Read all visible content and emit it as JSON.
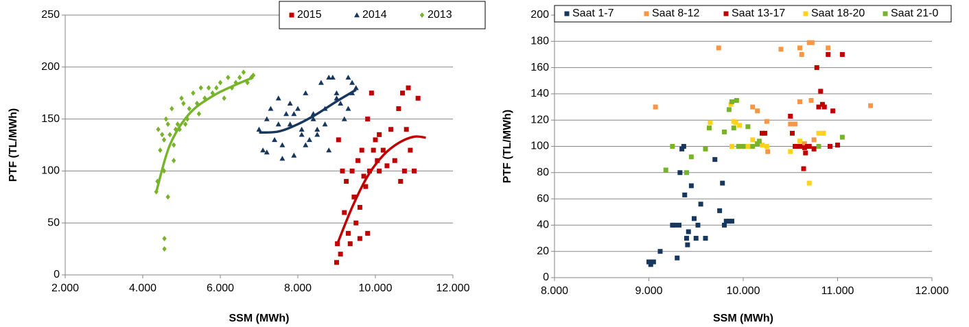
{
  "chart_data": [
    {
      "type": "scatter",
      "xlabel": "SSM (MWh)",
      "ylabel": "PTF (TL/MWh)",
      "xlim": [
        2000,
        12000
      ],
      "xticks": [
        {
          "value": 2000,
          "label": "2.000"
        },
        {
          "value": 4000,
          "label": "4.000"
        },
        {
          "value": 6000,
          "label": "6.000"
        },
        {
          "value": 8000,
          "label": "8.000"
        },
        {
          "value": 10000,
          "label": "10.000"
        },
        {
          "value": 12000,
          "label": "12.000"
        }
      ],
      "ylim": [
        0,
        250
      ],
      "yticks": [
        0,
        50,
        100,
        150,
        200,
        250
      ],
      "grid": true,
      "legend": "top-right",
      "series": [
        {
          "name": "2015",
          "color": "#c00000",
          "marker": "square",
          "x": [
            9000,
            9020,
            9050,
            9100,
            9150,
            9200,
            9250,
            9300,
            9350,
            9400,
            9450,
            9500,
            9550,
            9600,
            9650,
            9700,
            9750,
            9800,
            9850,
            9900,
            9950,
            10000,
            10050,
            10100,
            10200,
            10300,
            10400,
            10500,
            10600,
            10700,
            10800,
            10900,
            11000,
            11100,
            10750,
            10850,
            10650,
            9800,
            9600,
            10100
          ],
          "values": [
            12,
            30,
            130,
            20,
            100,
            60,
            90,
            40,
            30,
            100,
            75,
            50,
            110,
            65,
            120,
            95,
            85,
            150,
            100,
            175,
            120,
            130,
            110,
            100,
            120,
            105,
            140,
            110,
            160,
            175,
            140,
            120,
            100,
            170,
            100,
            180,
            90,
            40,
            35,
            135
          ],
          "trend": {
            "x": [
              9000,
              9400,
              9800,
              10200,
              10600,
              11000,
              11300
            ],
            "y": [
              28,
              65,
              95,
              115,
              127,
              133,
              132
            ]
          }
        },
        {
          "name": "2014",
          "color": "#17375e",
          "marker": "triangle",
          "x": [
            7000,
            7100,
            7200,
            7300,
            7400,
            7500,
            7600,
            7700,
            7800,
            7900,
            8000,
            8100,
            8200,
            8300,
            8400,
            8500,
            8600,
            8700,
            8800,
            8900,
            9000,
            9100,
            9200,
            9300,
            9400,
            9500,
            7200,
            7500,
            7800,
            8100,
            8400,
            8700,
            9000,
            9300,
            7600,
            8200,
            8800,
            9400,
            7900,
            8500
          ],
          "values": [
            140,
            120,
            150,
            160,
            130,
            170,
            125,
            155,
            145,
            115,
            160,
            140,
            175,
            130,
            150,
            135,
            185,
            160,
            120,
            190,
            175,
            165,
            150,
            190,
            185,
            180,
            118,
            145,
            165,
            135,
            155,
            145,
            170,
            160,
            112,
            125,
            190,
            175,
            155,
            140
          ],
          "trend": {
            "x": [
              7000,
              7500,
              8000,
              8500,
              9000,
              9500
            ],
            "y": [
              137,
              138,
              145,
              155,
              167,
              178
            ]
          }
        },
        {
          "name": "2013",
          "color": "#77b32b",
          "marker": "diamond",
          "x": [
            4350,
            4380,
            4400,
            4450,
            4500,
            4550,
            4550,
            4600,
            4650,
            4700,
            4750,
            4800,
            4850,
            4900,
            4950,
            5000,
            5050,
            5100,
            5150,
            5200,
            5300,
            5400,
            5450,
            5500,
            5600,
            5700,
            5800,
            5900,
            6000,
            6100,
            6200,
            6300,
            6400,
            6500,
            6600,
            6700,
            6800,
            6850,
            4560,
            4560,
            4650,
            4800
          ],
          "values": [
            80,
            90,
            140,
            120,
            135,
            130,
            100,
            150,
            145,
            135,
            160,
            125,
            140,
            145,
            140,
            170,
            165,
            145,
            150,
            160,
            175,
            165,
            155,
            180,
            170,
            180,
            175,
            180,
            185,
            170,
            190,
            180,
            185,
            190,
            195,
            185,
            190,
            192,
            35,
            25,
            75,
            110
          ],
          "trend": {
            "x": [
              4350,
              4700,
              5200,
              5800,
              6400,
              6850
            ],
            "y": [
              80,
              125,
              155,
              172,
              183,
              190
            ]
          }
        }
      ]
    },
    {
      "type": "scatter",
      "xlabel": "SSM (MWh)",
      "ylabel": "PTF (TL/MWh)",
      "xlim": [
        8000,
        12000
      ],
      "xticks": [
        {
          "value": 8000,
          "label": "8.000"
        },
        {
          "value": 9000,
          "label": "9.000"
        },
        {
          "value": 10000,
          "label": "10.000"
        },
        {
          "value": 11000,
          "label": "11.000"
        },
        {
          "value": 12000,
          "label": "12.000"
        }
      ],
      "ylim": [
        0,
        200
      ],
      "yticks": [
        0,
        20,
        40,
        60,
        80,
        100,
        120,
        140,
        160,
        180,
        200
      ],
      "grid": true,
      "legend": "top",
      "series": [
        {
          "name": "Saat 1-7",
          "color": "#17375e",
          "marker": "square",
          "x": [
            9000,
            9020,
            9050,
            9120,
            9250,
            9270,
            9300,
            9320,
            9350,
            9370,
            9400,
            9420,
            9450,
            9480,
            9500,
            9520,
            9550,
            9600,
            9700,
            9750,
            9780,
            9800,
            9820,
            9850,
            9880,
            9330,
            9380,
            9410
          ],
          "values": [
            12,
            10,
            12,
            20,
            40,
            40,
            15,
            40,
            98,
            100,
            30,
            35,
            70,
            45,
            30,
            40,
            56,
            30,
            90,
            51,
            72,
            40,
            43,
            43,
            43,
            80,
            63,
            25
          ]
        },
        {
          "name": "Saat 8-12",
          "color": "#f79646",
          "marker": "square",
          "x": [
            9070,
            9740,
            10400,
            10600,
            10620,
            10700,
            10730,
            10720,
            10900,
            11350,
            10100,
            10150,
            10250,
            10500,
            10550,
            10650,
            10750,
            10850,
            10260,
            10600
          ],
          "values": [
            130,
            175,
            174,
            175,
            170,
            179,
            179,
            135,
            175,
            131,
            130,
            127,
            119,
            117,
            117,
            102,
            105,
            110,
            96,
            134
          ]
        },
        {
          "name": "Saat 13-17",
          "color": "#c00000",
          "marker": "square",
          "x": [
            10200,
            10230,
            10500,
            10520,
            10550,
            10580,
            10600,
            10640,
            10660,
            10700,
            10750,
            10780,
            10800,
            10820,
            10840,
            10860,
            10900,
            10920,
            10950,
            11000,
            11050,
            10650,
            10680
          ],
          "values": [
            110,
            110,
            123,
            110,
            100,
            100,
            100,
            83,
            95,
            100,
            98,
            160,
            130,
            142,
            132,
            130,
            170,
            100,
            127,
            101,
            170,
            99,
            100
          ]
        },
        {
          "name": "Saat 18-20",
          "color": "#ffd21f",
          "marker": "square",
          "x": [
            9650,
            9870,
            9900,
            9920,
            9960,
            10050,
            10100,
            10150,
            10200,
            10250,
            10500,
            10600,
            10700,
            10800,
            10850,
            9880
          ],
          "values": [
            118,
            132,
            119,
            118,
            116,
            100,
            105,
            102,
            101,
            100,
            96,
            104,
            72,
            110,
            110,
            100
          ]
        },
        {
          "name": "Saat 21-0",
          "color": "#77b32b",
          "marker": "square",
          "x": [
            9180,
            9250,
            9400,
            9450,
            9600,
            9640,
            9800,
            9850,
            9880,
            9900,
            9930,
            10000,
            10050,
            10100,
            10150,
            10170,
            10800,
            11050,
            9950
          ],
          "values": [
            82,
            100,
            80,
            92,
            98,
            114,
            111,
            128,
            134,
            114,
            135,
            100,
            115,
            100,
            102,
            104,
            100,
            107,
            100
          ]
        }
      ]
    }
  ]
}
